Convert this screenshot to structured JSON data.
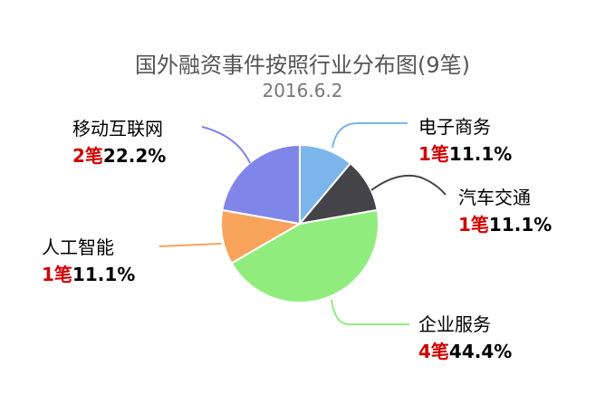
{
  "chart_data": {
    "type": "pie",
    "title": "国外融资事件按照行业分布图(9笔)",
    "subtitle": "2016.6.2",
    "unit": "笔",
    "slices": [
      {
        "name": "电子商务",
        "count": 1,
        "count_label": "1笔",
        "percent": "11.1%",
        "color": "#7cb5ec"
      },
      {
        "name": "汽车交通",
        "count": 1,
        "count_label": "1笔",
        "percent": "11.1%",
        "color": "#434348"
      },
      {
        "name": "企业服务",
        "count": 4,
        "count_label": "4笔",
        "percent": "44.4%",
        "color": "#90ed7d"
      },
      {
        "name": "人工智能",
        "count": 1,
        "count_label": "1笔",
        "percent": "11.1%",
        "color": "#f7a35c"
      },
      {
        "name": "移动互联网",
        "count": 2,
        "count_label": "2笔",
        "percent": "22.2%",
        "color": "#8085e9"
      }
    ]
  }
}
